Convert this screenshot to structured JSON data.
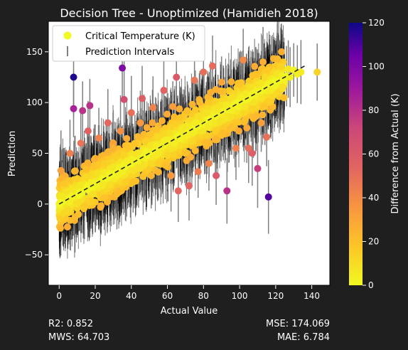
{
  "chart_data": {
    "type": "scatter",
    "title": "Decision Tree - Unoptimized (Hamidieh 2018)",
    "xlabel": "Actual Value",
    "ylabel": "Prediction",
    "xlim": [
      -6,
      150
    ],
    "ylim": [
      -80,
      180
    ],
    "xticks": [
      0,
      20,
      40,
      60,
      80,
      100,
      120,
      140
    ],
    "yticks": [
      -50,
      0,
      50,
      100,
      150
    ],
    "grid": false,
    "legend": {
      "placement": "top-left",
      "entries": [
        "Critical Temperature (K)",
        "Prediction Intervals"
      ]
    },
    "colorbar": {
      "label": "Difference from Actual (K)",
      "colormap": "plasma_r",
      "range": [
        0,
        120
      ],
      "ticks": [
        0,
        20,
        40,
        60,
        80,
        100,
        120
      ]
    },
    "reference_line": {
      "style": "dashed",
      "color": "#222222",
      "x": [
        0,
        136
      ],
      "y": [
        0,
        136
      ]
    },
    "series": [
      {
        "name": "Critical Temperature (K)",
        "points": [
          {
            "x": 0.5,
            "y": 1
          },
          {
            "x": 1,
            "y": 33
          },
          {
            "x": 2,
            "y": 8
          },
          {
            "x": 3,
            "y": 20
          },
          {
            "x": 4,
            "y": 12
          },
          {
            "x": 6,
            "y": 50
          },
          {
            "x": 8,
            "y": 125
          },
          {
            "x": 8,
            "y": 94
          },
          {
            "x": 10,
            "y": 25
          },
          {
            "x": 12,
            "y": 60
          },
          {
            "x": 13,
            "y": 92
          },
          {
            "x": 15,
            "y": 34
          },
          {
            "x": 16,
            "y": 72
          },
          {
            "x": 17,
            "y": 97
          },
          {
            "x": 18,
            "y": 3
          },
          {
            "x": 20,
            "y": 45
          },
          {
            "x": 22,
            "y": 65
          },
          {
            "x": 24,
            "y": 18
          },
          {
            "x": 25,
            "y": 40
          },
          {
            "x": 27,
            "y": 80
          },
          {
            "x": 28,
            "y": 30
          },
          {
            "x": 30,
            "y": 55
          },
          {
            "x": 32,
            "y": 10
          },
          {
            "x": 34,
            "y": 72
          },
          {
            "x": 35,
            "y": 134
          },
          {
            "x": 36,
            "y": 103
          },
          {
            "x": 38,
            "y": 42
          },
          {
            "x": 40,
            "y": 90
          },
          {
            "x": 41,
            "y": 22
          },
          {
            "x": 42,
            "y": 60
          },
          {
            "x": 44,
            "y": 35
          },
          {
            "x": 45,
            "y": 80
          },
          {
            "x": 46,
            "y": 104
          },
          {
            "x": 48,
            "y": 50
          },
          {
            "x": 50,
            "y": 68
          },
          {
            "x": 51,
            "y": 28
          },
          {
            "x": 52,
            "y": 95
          },
          {
            "x": 54,
            "y": 58
          },
          {
            "x": 55,
            "y": 40
          },
          {
            "x": 57,
            "y": 82
          },
          {
            "x": 58,
            "y": 112
          },
          {
            "x": 60,
            "y": 48
          },
          {
            "x": 61,
            "y": 70
          },
          {
            "x": 62,
            "y": 28
          },
          {
            "x": 63,
            "y": 96
          },
          {
            "x": 64,
            "y": 60
          },
          {
            "x": 65,
            "y": 125
          },
          {
            "x": 66,
            "y": 13
          },
          {
            "x": 67,
            "y": 85
          },
          {
            "x": 68,
            "y": 74
          },
          {
            "x": 70,
            "y": 50
          },
          {
            "x": 71,
            "y": 92
          },
          {
            "x": 72,
            "y": 18
          },
          {
            "x": 73,
            "y": 62
          },
          {
            "x": 75,
            "y": 122
          },
          {
            "x": 76,
            "y": 80
          },
          {
            "x": 77,
            "y": 32
          },
          {
            "x": 78,
            "y": 100
          },
          {
            "x": 80,
            "y": 130
          },
          {
            "x": 81,
            "y": 60
          },
          {
            "x": 82,
            "y": 90
          },
          {
            "x": 83,
            "y": 40
          },
          {
            "x": 84,
            "y": 110
          },
          {
            "x": 85,
            "y": 136
          },
          {
            "x": 86,
            "y": 80
          },
          {
            "x": 87,
            "y": 28
          },
          {
            "x": 88,
            "y": 96
          },
          {
            "x": 90,
            "y": 120
          },
          {
            "x": 91,
            "y": 70
          },
          {
            "x": 92,
            "y": 85
          },
          {
            "x": 93,
            "y": 13
          },
          {
            "x": 95,
            "y": 104
          },
          {
            "x": 96,
            "y": 92
          },
          {
            "x": 98,
            "y": 55
          },
          {
            "x": 100,
            "y": 118
          },
          {
            "x": 101,
            "y": 105
          },
          {
            "x": 102,
            "y": 142
          },
          {
            "x": 103,
            "y": 96
          },
          {
            "x": 104,
            "y": 75
          },
          {
            "x": 105,
            "y": 55
          },
          {
            "x": 106,
            "y": 115
          },
          {
            "x": 107,
            "y": 50
          },
          {
            "x": 108,
            "y": 100
          },
          {
            "x": 109,
            "y": 128
          },
          {
            "x": 110,
            "y": 35
          },
          {
            "x": 112,
            "y": 80
          },
          {
            "x": 113,
            "y": 140
          },
          {
            "x": 114,
            "y": 96
          },
          {
            "x": 115,
            "y": 66
          },
          {
            "x": 116,
            "y": 7
          },
          {
            "x": 117,
            "y": 112
          },
          {
            "x": 118,
            "y": 120
          },
          {
            "x": 120,
            "y": 120
          },
          {
            "x": 121,
            "y": 143
          },
          {
            "x": 122,
            "y": 110
          },
          {
            "x": 124,
            "y": 115
          },
          {
            "x": 126,
            "y": 126
          },
          {
            "x": 127,
            "y": 133
          },
          {
            "x": 128,
            "y": 125
          },
          {
            "x": 130,
            "y": 132
          },
          {
            "x": 132,
            "y": 128
          },
          {
            "x": 134,
            "y": 130
          },
          {
            "x": 143,
            "y": 130
          }
        ]
      },
      {
        "name": "Prediction Intervals",
        "halfwidth_range": [
          25,
          40
        ]
      }
    ]
  },
  "metrics": {
    "r2": "R2: 0.852",
    "mws": "MWS: 64.703",
    "mse": "MSE: 174.069",
    "mae": "MAE: 6.784"
  },
  "colors": {
    "background": "#1f1f1f",
    "plot_area": "#ffffff",
    "text": "#ffffff",
    "interval_bars": "#000000",
    "interval_legend": "#7f7f7f"
  }
}
